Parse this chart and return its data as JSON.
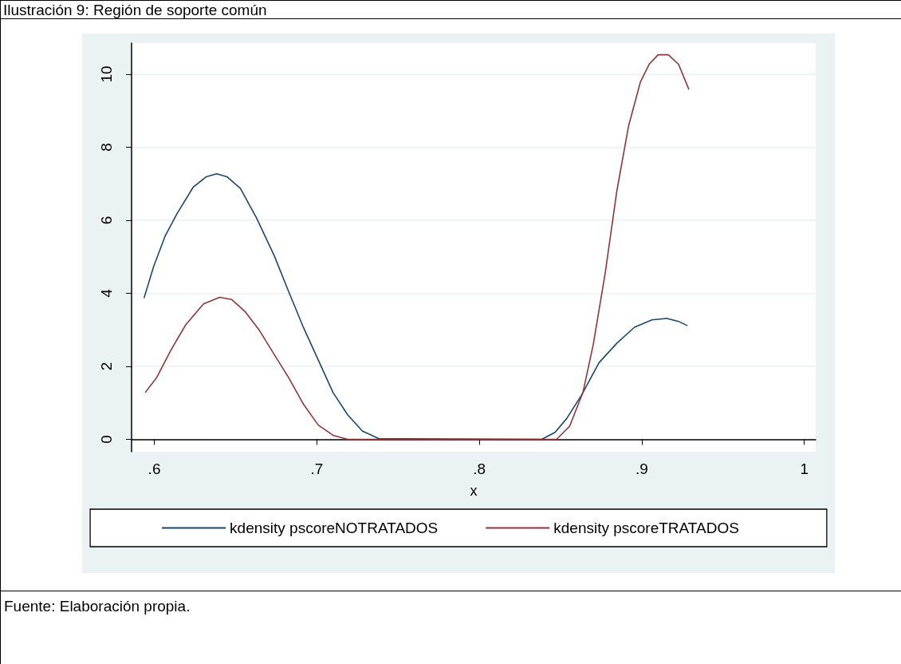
{
  "chart_data": {
    "type": "line",
    "title": "Ilustración 9: Región de soporte común",
    "xlabel": "x",
    "annotations": [
      "Fuente: Elaboración propia."
    ],
    "xlim": [
      0.586,
      1.007
    ],
    "xticks": [
      {
        "value": 0.6,
        "label": ".6"
      },
      {
        "value": 0.7,
        "label": ".7"
      },
      {
        "value": 0.8,
        "label": ".8"
      },
      {
        "value": 0.9,
        "label": ".9"
      },
      {
        "value": 1,
        "label": "1"
      }
    ],
    "ylim": [
      -0.34,
      10.85
    ],
    "yticks": [
      0,
      2,
      4,
      6,
      8,
      10
    ],
    "grid": "y",
    "legend": "bottom",
    "marker": "none",
    "line_style": "solid",
    "series": [
      {
        "name": "kdensity pscoreNOTRATADOS",
        "color": "#1a476f",
        "x": [
          0.5937,
          0.5995,
          0.6067,
          0.614,
          0.624,
          0.632,
          0.6384,
          0.6447,
          0.653,
          0.6629,
          0.6737,
          0.6828,
          0.6918,
          0.7009,
          0.71,
          0.719,
          0.728,
          0.738,
          0.8384,
          0.8466,
          0.8538,
          0.8629,
          0.8737,
          0.8846,
          0.8955,
          0.9063,
          0.9154,
          0.9226,
          0.9281
        ],
        "values": [
          3.87,
          4.72,
          5.57,
          6.18,
          6.91,
          7.19,
          7.27,
          7.19,
          6.87,
          6.06,
          5.04,
          4.03,
          3.06,
          2.17,
          1.28,
          0.67,
          0.23,
          0.02,
          0,
          0.19,
          0.57,
          1.21,
          2.1,
          2.63,
          3.07,
          3.27,
          3.31,
          3.23,
          3.11
        ]
      },
      {
        "name": "kdensity pscoreTRATADOS",
        "color": "#90353b",
        "x": [
          0.5944,
          0.6013,
          0.6103,
          0.6194,
          0.6303,
          0.6402,
          0.6475,
          0.6556,
          0.6647,
          0.6737,
          0.6828,
          0.6918,
          0.7009,
          0.71,
          0.719,
          0.8475,
          0.8556,
          0.8638,
          0.8701,
          0.8774,
          0.8846,
          0.8918,
          0.8991,
          0.9045,
          0.91,
          0.9163,
          0.9226,
          0.929
        ],
        "values": [
          1.28,
          1.68,
          2.45,
          3.14,
          3.71,
          3.89,
          3.83,
          3.51,
          2.98,
          2.33,
          1.68,
          0.96,
          0.39,
          0.11,
          0,
          0,
          0.36,
          1.29,
          2.59,
          4.53,
          6.79,
          8.57,
          9.78,
          10.27,
          10.53,
          10.53,
          10.27,
          9.58
        ]
      }
    ]
  }
}
